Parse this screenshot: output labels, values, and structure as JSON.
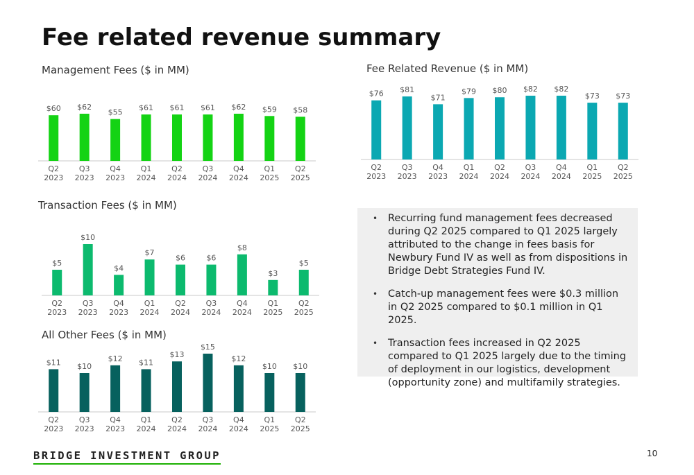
{
  "page": {
    "title": "Fee related revenue summary",
    "page_number": "10",
    "logo_text": "BRIDGE INVESTMENT GROUP",
    "logo_accent_color": "#1ab000"
  },
  "commentary": {
    "bullets": [
      "Recurring fund management fees decreased during Q2 2025 compared to Q1 2025 largely attributed to the change in fees basis for Newbury Fund IV as well as from dispositions in Bridge Debt Strategies Fund IV.",
      "Catch-up management fees were $0.3 million in Q2 2025 compared to $0.1 million in Q1 2025.",
      "Transaction fees increased in Q2 2025 compared to Q1 2025 largely due to the timing of deployment in our logistics, development (opportunity zone) and multifamily strategies."
    ]
  },
  "chart_data": [
    {
      "id": "management",
      "type": "bar",
      "title": "Management Fees ($ in MM)",
      "categories": [
        "Q2 2023",
        "Q3 2023",
        "Q4 2023",
        "Q1 2024",
        "Q2 2024",
        "Q3 2024",
        "Q4 2024",
        "Q1 2025",
        "Q2 2025"
      ],
      "values": [
        60,
        62,
        55,
        61,
        61,
        61,
        62,
        59,
        58
      ],
      "labels": [
        "$60",
        "$62",
        "$55",
        "$61",
        "$61",
        "$61",
        "$62",
        "$59",
        "$58"
      ],
      "color": "#14d314",
      "ylim": [
        0,
        62
      ],
      "grid": false
    },
    {
      "id": "fee_related",
      "type": "bar",
      "title": "Fee Related Revenue ($ in MM)",
      "categories": [
        "Q2 2023",
        "Q3 2023",
        "Q4 2023",
        "Q1 2024",
        "Q2 2024",
        "Q3 2024",
        "Q4 2024",
        "Q1 2025",
        "Q2 2025"
      ],
      "values": [
        76,
        81,
        71,
        79,
        80,
        82,
        82,
        73,
        73
      ],
      "labels": [
        "$76",
        "$81",
        "$71",
        "$79",
        "$80",
        "$82",
        "$82",
        "$73",
        "$73"
      ],
      "color": "#0ba8b2",
      "ylim": [
        0,
        82
      ],
      "grid": false
    },
    {
      "id": "transaction",
      "type": "bar",
      "title": "Transaction Fees ($ in MM)",
      "categories": [
        "Q2 2023",
        "Q3 2023",
        "Q4 2023",
        "Q1 2024",
        "Q2 2024",
        "Q3 2024",
        "Q4 2024",
        "Q1 2025",
        "Q2 2025"
      ],
      "values": [
        5,
        10,
        4,
        7,
        6,
        6,
        8,
        3,
        5
      ],
      "labels": [
        "$5",
        "$10",
        "$4",
        "$7",
        "$6",
        "$6",
        "$8",
        "$3",
        "$5"
      ],
      "color": "#0cba6e",
      "ylim": [
        0,
        10
      ],
      "grid": false
    },
    {
      "id": "other",
      "type": "bar",
      "title": "All Other Fees ($ in MM)",
      "categories": [
        "Q2 2023",
        "Q3 2023",
        "Q4 2023",
        "Q1 2024",
        "Q2 2024",
        "Q3 2024",
        "Q4 2024",
        "Q1 2025",
        "Q2 2025"
      ],
      "values": [
        11,
        10,
        12,
        11,
        13,
        15,
        12,
        10,
        10
      ],
      "labels": [
        "$11",
        "$10",
        "$12",
        "$11",
        "$13",
        "$15",
        "$12",
        "$10",
        "$10"
      ],
      "color": "#07615e",
      "ylim": [
        0,
        15
      ],
      "grid": false
    }
  ]
}
